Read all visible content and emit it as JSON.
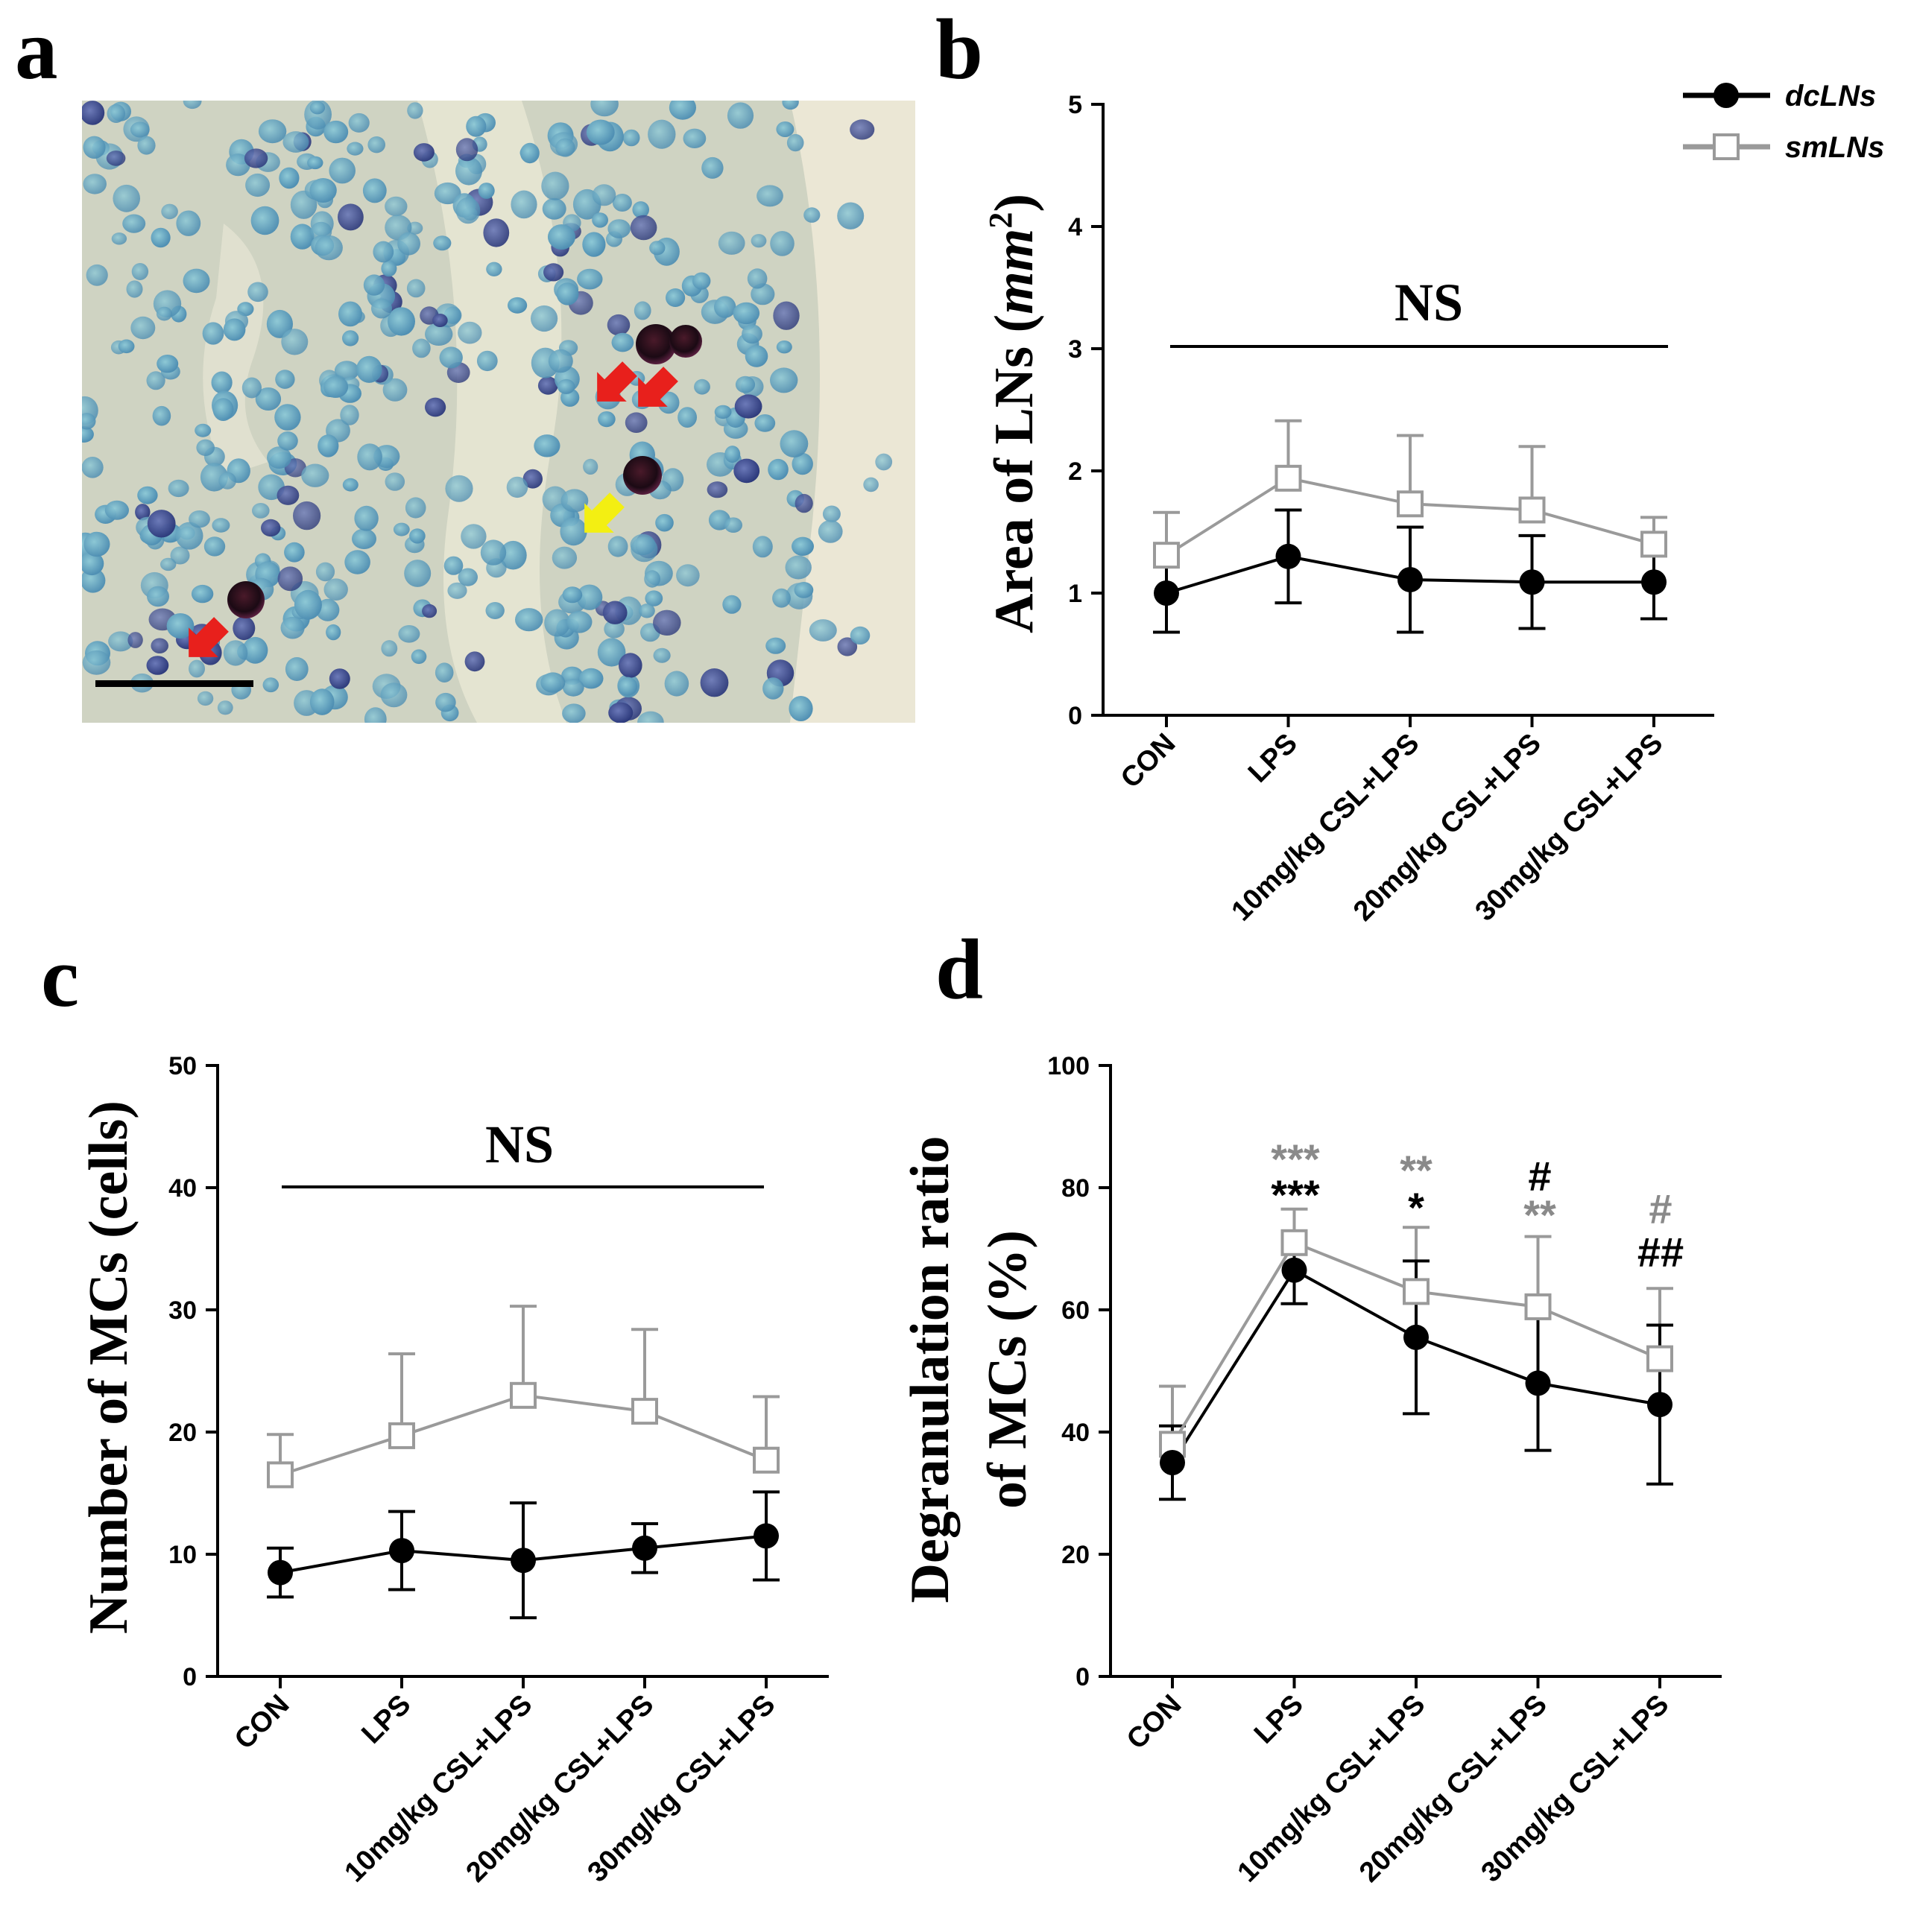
{
  "panels": {
    "a": "a",
    "b": "b",
    "c": "c",
    "d": "d"
  },
  "legend": {
    "dcLNs": "dcLNs",
    "smLNs": "smLNs"
  },
  "colors": {
    "dcLNs": "#000000",
    "smLNs": "#9a9a9a"
  },
  "image_panel": {
    "icon": "micrograph-image",
    "arrows": [
      "red",
      "red",
      "red",
      "yellow"
    ]
  },
  "chart_data": [
    {
      "panel": "b",
      "type": "line",
      "categories": [
        "CON",
        "LPS",
        "10mg/kg CSL+LPS",
        "20mg/kg CSL+LPS",
        "30mg/kg CSL+LPS"
      ],
      "ylabel_main": "Area of LNs (",
      "ylabel_unit": "mm",
      "ylabel_exp": "2",
      "ylabel_end": ")",
      "ylim": [
        0,
        5
      ],
      "yticks": [
        "0",
        "1",
        "2",
        "3",
        "4",
        "5"
      ],
      "series": [
        {
          "name": "dcLNs",
          "values": [
            1.0,
            1.3,
            1.11,
            1.09,
            1.09
          ],
          "err": [
            0.32,
            0.38,
            0.43,
            0.38,
            0.3
          ]
        },
        {
          "name": "smLNs",
          "values": [
            1.31,
            1.94,
            1.73,
            1.68,
            1.4
          ],
          "err": [
            0.35,
            0.47,
            0.56,
            0.52,
            0.22
          ]
        }
      ],
      "significance": "NS"
    },
    {
      "panel": "c",
      "type": "line",
      "categories": [
        "CON",
        "LPS",
        "10mg/kg CSL+LPS",
        "20mg/kg CSL+LPS",
        "30mg/kg CSL+LPS"
      ],
      "ylabel": "Number of MCs (cells)",
      "ylim": [
        0,
        50
      ],
      "yticks": [
        "0",
        "10",
        "20",
        "30",
        "40",
        "50"
      ],
      "series": [
        {
          "name": "dcLNs",
          "values": [
            8.5,
            10.3,
            9.5,
            10.5,
            11.5
          ],
          "err": [
            2.0,
            3.2,
            4.7,
            2.0,
            3.6
          ]
        },
        {
          "name": "smLNs",
          "values": [
            16.5,
            19.7,
            23.0,
            21.7,
            17.7
          ],
          "err": [
            3.3,
            6.7,
            7.3,
            6.7,
            5.2
          ]
        }
      ],
      "significance": "NS"
    },
    {
      "panel": "d",
      "type": "line",
      "categories": [
        "CON",
        "LPS",
        "10mg/kg CSL+LPS",
        "20mg/kg CSL+LPS",
        "30mg/kg CSL+LPS"
      ],
      "ylabel_line1": "Degranulation ratio",
      "ylabel_line2": "of MCs (%)",
      "ylim": [
        0,
        100
      ],
      "yticks": [
        "0",
        "20",
        "40",
        "60",
        "80",
        "100"
      ],
      "series": [
        {
          "name": "dcLNs",
          "values": [
            35.0,
            66.5,
            55.5,
            48.0,
            44.5
          ],
          "err": [
            6.0,
            5.5,
            12.5,
            11.0,
            13.0
          ]
        },
        {
          "name": "smLNs",
          "values": [
            38.0,
            71.0,
            63.0,
            60.5,
            52.0
          ],
          "err": [
            9.5,
            5.5,
            10.5,
            11.5,
            11.5
          ]
        }
      ],
      "annotations": {
        "lps_gray": "***",
        "lps_black": "***",
        "csl10_gray": "**",
        "csl10_black": "*",
        "csl20_black": "#",
        "csl20_gray": "**",
        "csl30_gray": "#",
        "csl30_black": "##"
      }
    }
  ]
}
